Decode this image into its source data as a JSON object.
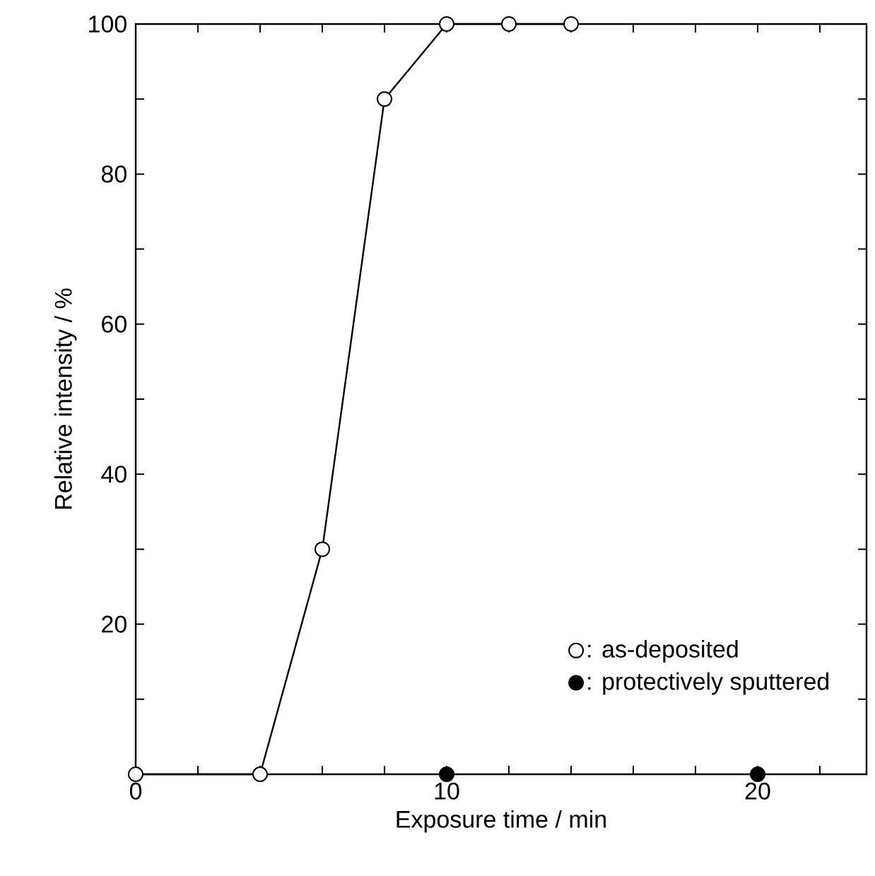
{
  "chart_data": {
    "type": "line",
    "xlabel": "Exposure time / min",
    "ylabel": "Relative intensity / %",
    "xlim": [
      0,
      23.5
    ],
    "ylim": [
      0,
      100
    ],
    "xticks": [
      0,
      {
        "value": 2,
        "label": null
      },
      {
        "value": 4,
        "label": null
      },
      {
        "value": 6,
        "label": null
      },
      {
        "value": 8,
        "label": null
      },
      10,
      {
        "value": 12,
        "label": null
      },
      {
        "value": 14,
        "label": null
      },
      {
        "value": 16,
        "label": null
      },
      {
        "value": 18,
        "label": null
      },
      20,
      {
        "value": 22,
        "label": null
      }
    ],
    "yticks": [
      {
        "value": 0,
        "label": null
      },
      {
        "value": 10,
        "label": null
      },
      20,
      {
        "value": 30,
        "label": null
      },
      40,
      {
        "value": 50,
        "label": null
      },
      60,
      {
        "value": 70,
        "label": null
      },
      80,
      {
        "value": 90,
        "label": null
      },
      100
    ],
    "marker": "circle",
    "legend": "bottom right",
    "series": [
      {
        "name": ": as-deposited",
        "color": "#ffffff",
        "x": [
          0,
          4,
          6,
          8,
          10,
          12,
          14
        ],
        "values": [
          0,
          0,
          30,
          90,
          100,
          100,
          100
        ]
      },
      {
        "name": ": protectively sputtered",
        "type": "scatter",
        "color": "#000000",
        "x": [
          10,
          20
        ],
        "values": [
          0,
          0
        ]
      }
    ]
  }
}
